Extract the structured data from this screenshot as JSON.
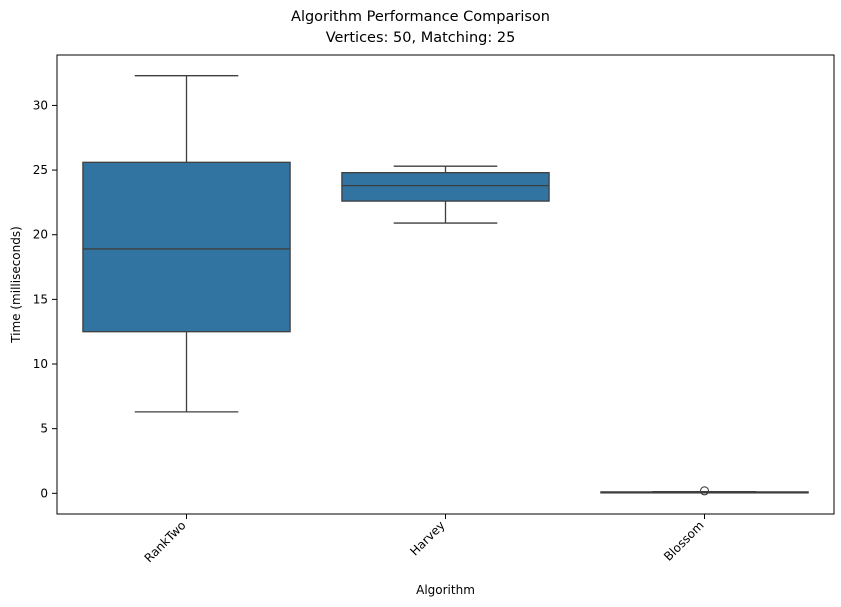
{
  "chart_data": {
    "type": "box",
    "title": "Algorithm Performance Comparison",
    "subtitle": "Vertices: 50, Matching: 25",
    "xlabel": "Algorithm",
    "ylabel": "Time (milliseconds)",
    "categories": [
      "RankTwo",
      "Harvey",
      "Blossom"
    ],
    "ylim": [
      -1.6,
      33.9
    ],
    "yticks": [
      "0",
      "5",
      "10",
      "15",
      "20",
      "25",
      "30"
    ],
    "xtick_rotation": 45,
    "grid": false,
    "legend": "none",
    "box_color": "#3274a1",
    "line_color": "#3f3f3f",
    "boxes": [
      {
        "category": "RankTwo",
        "whisker_low": 6.3,
        "q1": 12.5,
        "median": 18.9,
        "q3": 25.6,
        "whisker_high": 32.3,
        "outliers": []
      },
      {
        "category": "Harvey",
        "whisker_low": 20.9,
        "q1": 22.6,
        "median": 23.8,
        "q3": 24.8,
        "whisker_high": 25.3,
        "outliers": []
      },
      {
        "category": "Blossom",
        "whisker_low": 0.05,
        "q1": 0.06,
        "median": 0.08,
        "q3": 0.11,
        "whisker_high": 0.13,
        "outliers": [
          0.19
        ]
      }
    ]
  }
}
